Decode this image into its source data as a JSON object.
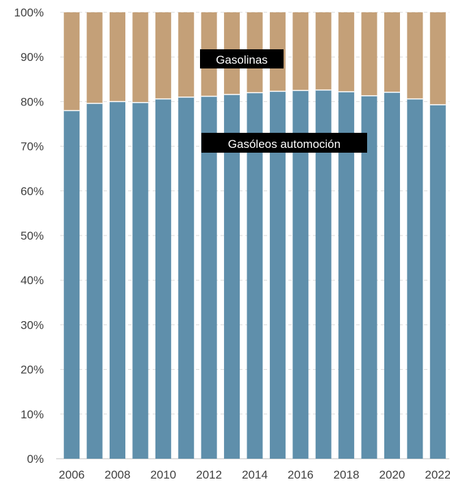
{
  "chart_data": {
    "type": "bar",
    "stacked": true,
    "normalized": true,
    "x": [
      "2006",
      "2007",
      "2008",
      "2009",
      "2010",
      "2011",
      "2012",
      "2013",
      "2014",
      "2015",
      "2016",
      "2017",
      "2018",
      "2019",
      "2020",
      "2021",
      "2022"
    ],
    "x_tick_labels": [
      "2006",
      "2008",
      "2010",
      "2012",
      "2014",
      "2016",
      "2018",
      "2020",
      "2022"
    ],
    "y_tick_labels": [
      "0%",
      "10%",
      "20%",
      "30%",
      "40%",
      "50%",
      "60%",
      "70%",
      "80%",
      "90%",
      "100%"
    ],
    "ylim": [
      0,
      100
    ],
    "grid": "horizontal dashed",
    "series": [
      {
        "name": "Gasóleos automoción",
        "color": "#5f8fab",
        "values": [
          78.0,
          79.6,
          80.0,
          79.8,
          80.6,
          81.0,
          81.2,
          81.6,
          82.0,
          82.3,
          82.5,
          82.6,
          82.2,
          81.3,
          82.1,
          80.6,
          79.3
        ]
      },
      {
        "name": "Gasolinas",
        "color": "#c4a078",
        "values": [
          22.0,
          20.4,
          20.0,
          20.2,
          19.4,
          19.0,
          18.8,
          18.4,
          18.0,
          17.7,
          17.5,
          17.4,
          17.8,
          18.7,
          17.9,
          19.4,
          20.7
        ]
      }
    ]
  }
}
